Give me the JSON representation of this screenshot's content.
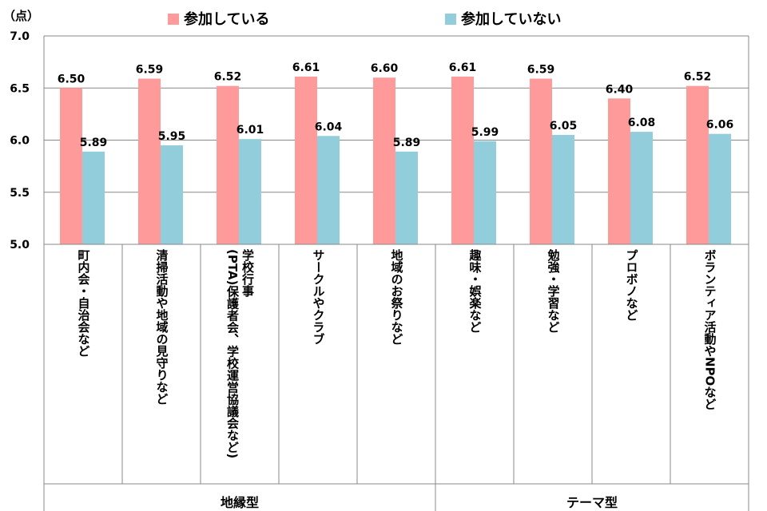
{
  "chart_data": {
    "type": "bar",
    "unit_label": "（点）",
    "ylim": [
      5.0,
      7.0
    ],
    "yticks": [
      "5.0",
      "5.5",
      "6.0",
      "6.5",
      "7.0"
    ],
    "grid": true,
    "legend_position": "top",
    "categories": [
      [
        "町内会・自治会など"
      ],
      [
        "清掃活動や地域の見守りなど"
      ],
      [
        "学校行事",
        "(PTA)保護者会、学校運営協議会など)"
      ],
      [
        "サークルやクラブ"
      ],
      [
        "地域のお祭りなど"
      ],
      [
        "趣味・娯楽など"
      ],
      [
        "勉強・学習など"
      ],
      [
        "プロボノなど"
      ],
      [
        "ボランティア活動やNPOなど"
      ]
    ],
    "series": [
      {
        "name": "参加している",
        "color": "#ff9a9a",
        "values": [
          6.5,
          6.59,
          6.52,
          6.61,
          6.6,
          6.61,
          6.59,
          6.4,
          6.52
        ],
        "labels": [
          "6.50",
          "6.59",
          "6.52",
          "6.61",
          "6.60",
          "6.61",
          "6.59",
          "6.40",
          "6.52"
        ]
      },
      {
        "name": "参加していない",
        "color": "#92cddc",
        "values": [
          5.89,
          5.95,
          6.01,
          6.04,
          5.89,
          5.99,
          6.05,
          6.08,
          6.06
        ],
        "labels": [
          "5.89",
          "5.95",
          "6.01",
          "6.04",
          "5.89",
          "5.99",
          "6.05",
          "6.08",
          "6.06"
        ]
      }
    ],
    "groups": [
      {
        "label": "地縁型",
        "count": 5
      },
      {
        "label": "テーマ型",
        "count": 4
      }
    ]
  }
}
